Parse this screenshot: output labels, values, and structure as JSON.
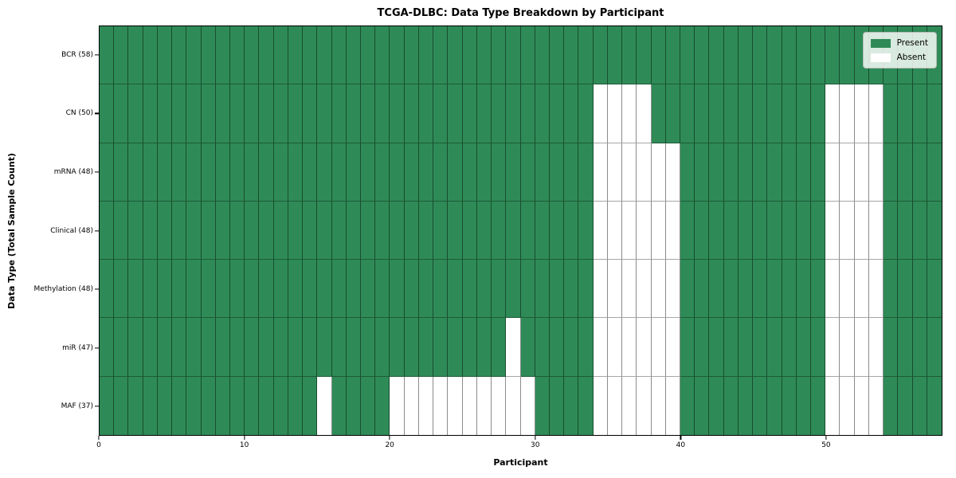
{
  "colors": {
    "present": "#2e8b57",
    "absent": "#ffffff",
    "spine": "#000000"
  },
  "chart_data": {
    "type": "heatmap",
    "title": "TCGA-DLBC: Data Type Breakdown by Participant",
    "xlabel": "Participant",
    "ylabel": "Data Type (Total Sample Count)",
    "x_range": [
      0,
      58
    ],
    "n_participants": 58,
    "x_ticks": [
      0,
      10,
      20,
      30,
      40,
      50
    ],
    "grid": true,
    "legend_position": "upper right",
    "legend_entries": [
      "Present",
      "Absent"
    ],
    "rows": [
      {
        "label": "BCR (58)",
        "total_samples": 58,
        "absent_participants": []
      },
      {
        "label": "CN (50)",
        "total_samples": 50,
        "absent_participants": [
          34,
          35,
          36,
          37,
          50,
          51,
          52,
          53
        ]
      },
      {
        "label": "mRNA (48)",
        "total_samples": 48,
        "absent_participants": [
          34,
          35,
          36,
          37,
          38,
          39,
          50,
          51,
          52,
          53
        ]
      },
      {
        "label": "Clinical (48)",
        "total_samples": 48,
        "absent_participants": [
          34,
          35,
          36,
          37,
          38,
          39,
          50,
          51,
          52,
          53
        ]
      },
      {
        "label": "Methylation (48)",
        "total_samples": 48,
        "absent_participants": [
          34,
          35,
          36,
          37,
          38,
          39,
          50,
          51,
          52,
          53
        ]
      },
      {
        "label": "miR (47)",
        "total_samples": 47,
        "absent_participants": [
          28,
          34,
          35,
          36,
          37,
          38,
          39,
          50,
          51,
          52,
          53
        ]
      },
      {
        "label": "MAF (37)",
        "total_samples": 37,
        "absent_participants": [
          15,
          20,
          21,
          22,
          23,
          24,
          25,
          26,
          27,
          28,
          29,
          34,
          35,
          36,
          37,
          38,
          39,
          50,
          51,
          52,
          53
        ]
      }
    ]
  }
}
